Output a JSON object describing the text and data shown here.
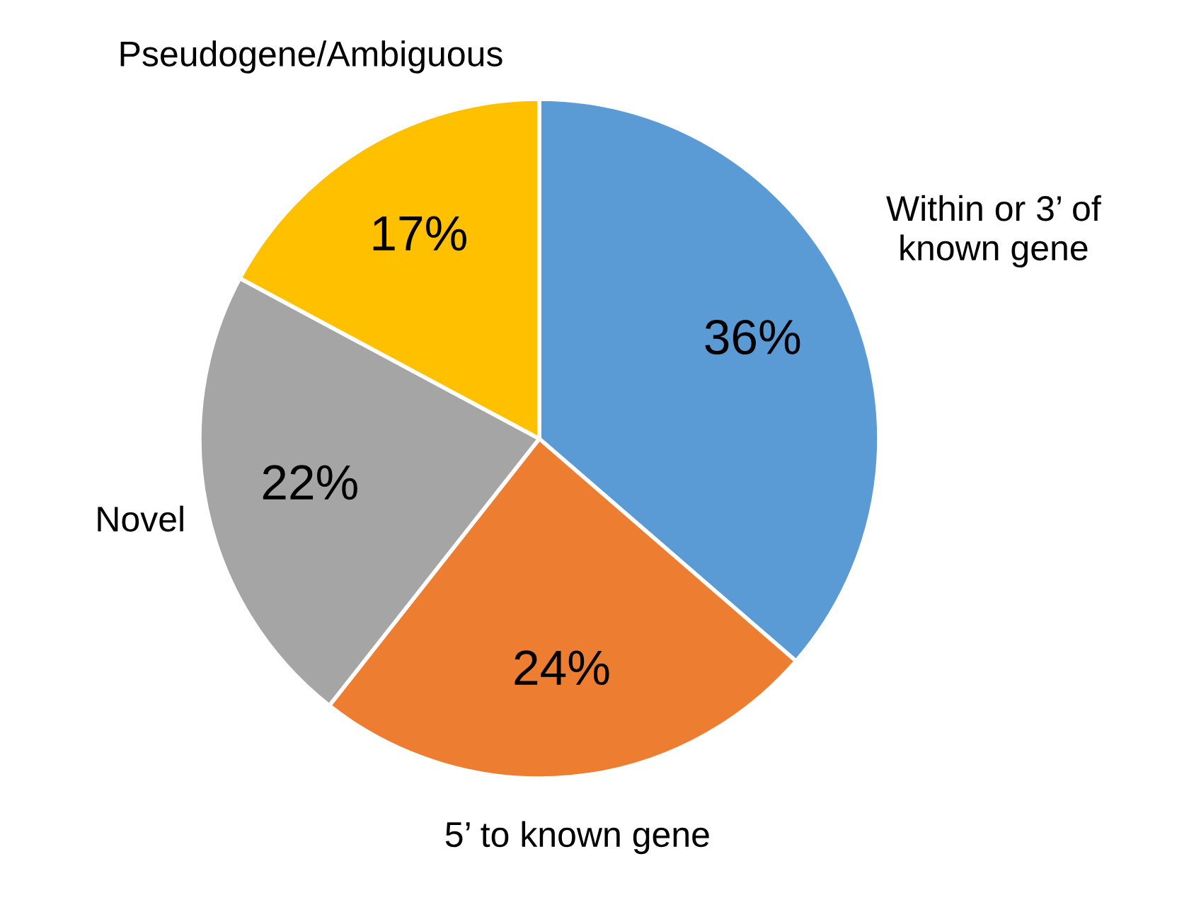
{
  "chart_data": {
    "type": "pie",
    "categories": [
      "Within or 3’ of\nknown gene",
      "5’ to known gene",
      "Novel",
      "Pseudogene/Ambiguous"
    ],
    "values": [
      36,
      24,
      22,
      17
    ],
    "colors": [
      "#5b9bd5",
      "#ed7d31",
      "#a5a5a5",
      "#ffc000"
    ],
    "value_labels": [
      "36%",
      "24%",
      "22%",
      "17%"
    ]
  }
}
